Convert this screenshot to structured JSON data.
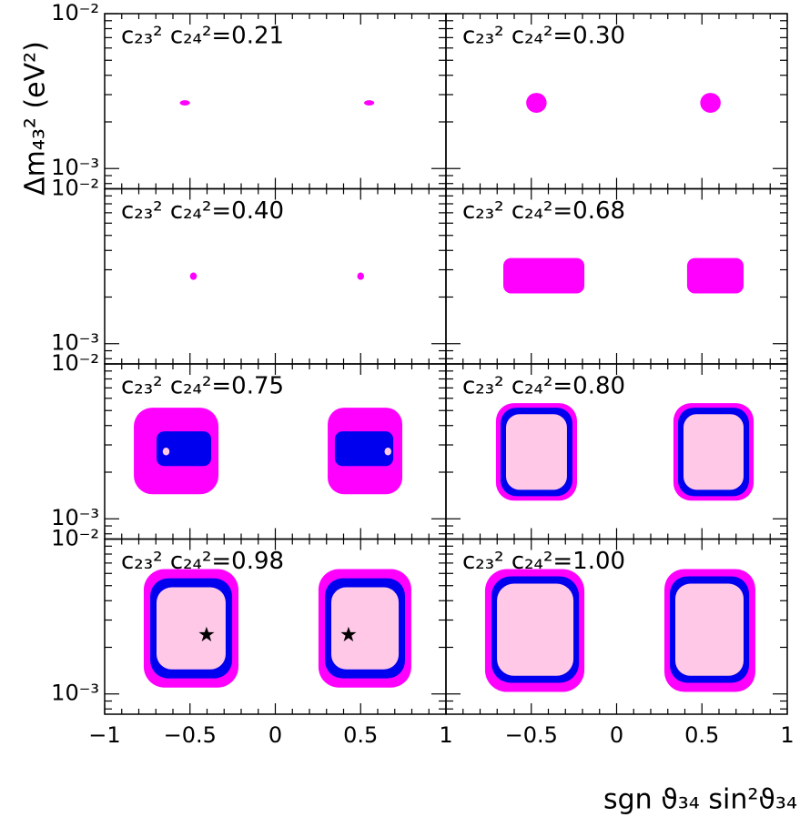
{
  "chart_data": {
    "type": "contour",
    "xlabel": "sgn ϑ₃₄ sin²ϑ₃₄",
    "ylabel": "Δm₄₃² (eV²)",
    "xlim": [
      -1,
      1
    ],
    "ylim": [
      0.00074,
      0.01
    ],
    "log_y": true,
    "xticks": [
      {
        "value": -1,
        "label": "−1"
      },
      {
        "value": -0.5,
        "label": "−0.5"
      },
      0,
      0.5,
      1
    ],
    "xticks_minor": [
      -0.9,
      -0.8,
      -0.7,
      -0.6,
      -0.4,
      -0.3,
      -0.2,
      -0.1,
      0.1,
      0.2,
      0.3,
      0.4,
      0.6,
      0.7,
      0.8,
      0.9
    ],
    "yticks": [
      {
        "value": 0.001,
        "label": "10⁻³"
      },
      {
        "value": 0.01,
        "label": "10⁻²"
      }
    ],
    "yticks_minor": [
      0.0008,
      0.0009,
      0.002,
      0.003,
      0.004,
      0.005,
      0.006,
      0.007,
      0.008,
      0.009
    ],
    "panels": [
      {
        "label": "c₂₃² c₂₄²=0.21",
        "regions": [
          {
            "color": "#ff00ff",
            "x": [
              -0.56,
              -0.5
            ],
            "y": [
              0.00255,
              0.00276
            ]
          },
          {
            "color": "#ff00ff",
            "x": [
              0.52,
              0.58
            ],
            "y": [
              0.00255,
              0.00276
            ]
          }
        ]
      },
      {
        "label": "c₂₃² c₂₄²=0.30",
        "regions": [
          {
            "color": "#ff00ff",
            "x": [
              -0.53,
              -0.41
            ],
            "y": [
              0.00229,
              0.00308
            ]
          },
          {
            "color": "#ff00ff",
            "x": [
              0.49,
              0.61
            ],
            "y": [
              0.00229,
              0.00308
            ]
          }
        ]
      },
      {
        "label": "c₂₃² c₂₄²=0.40",
        "regions": [
          {
            "color": "#ff00ff",
            "x": [
              -0.5,
              -0.46
            ],
            "y": [
              0.00258,
              0.00288
            ]
          },
          {
            "color": "#ff00ff",
            "x": [
              0.48,
              0.52
            ],
            "y": [
              0.00258,
              0.00288
            ]
          }
        ]
      },
      {
        "label": "c₂₃² c₂₄²=0.68",
        "regions": [
          {
            "color": "#ff00ff",
            "x": [
              -0.664,
              -0.189
            ],
            "y": [
              0.00211,
              0.00357
            ]
          },
          {
            "color": "#ff00ff",
            "x": [
              0.413,
              0.744
            ],
            "y": [
              0.00211,
              0.00357
            ]
          }
        ]
      },
      {
        "label": "c₂₃² c₂₄²=0.75",
        "regions": [
          {
            "color": "#ff00ff",
            "x": [
              -0.829,
              -0.333
            ],
            "y": [
              0.00144,
              0.00522
            ]
          },
          {
            "color": "#0000ee",
            "x": [
              -0.696,
              -0.376
            ],
            "y": [
              0.00219,
              0.00367
            ]
          },
          {
            "color": "#ffc8e6",
            "x": [
              -0.66,
              -0.62
            ],
            "y": [
              0.00257,
              0.00288
            ]
          },
          {
            "color": "#ff00ff",
            "x": [
              0.307,
              0.744
            ],
            "y": [
              0.00144,
              0.00522
            ]
          },
          {
            "color": "#0000ee",
            "x": [
              0.349,
              0.691
            ],
            "y": [
              0.00219,
              0.00367
            ]
          },
          {
            "color": "#ffc8e6",
            "x": [
              0.64,
              0.68
            ],
            "y": [
              0.00257,
              0.00288
            ]
          }
        ]
      },
      {
        "label": "c₂₃² c₂₄²=0.80",
        "regions": [
          {
            "color": "#ff00ff",
            "x": [
              -0.707,
              -0.232
            ],
            "y": [
              0.00131,
              0.00558
            ]
          },
          {
            "color": "#0000ee",
            "x": [
              -0.68,
              -0.259
            ],
            "y": [
              0.0014,
              0.00522
            ]
          },
          {
            "color": "#ffc8e6",
            "x": [
              -0.648,
              -0.291
            ],
            "y": [
              0.00154,
              0.00474
            ]
          },
          {
            "color": "#ff00ff",
            "x": [
              0.333,
              0.803
            ],
            "y": [
              0.00131,
              0.00558
            ]
          },
          {
            "color": "#0000ee",
            "x": [
              0.36,
              0.776
            ],
            "y": [
              0.0014,
              0.00522
            ]
          },
          {
            "color": "#ffc8e6",
            "x": [
              0.392,
              0.744
            ],
            "y": [
              0.00154,
              0.00474
            ]
          }
        ]
      },
      {
        "label": "c₂₃² c₂₄²=0.98",
        "regions": [
          {
            "color": "#ff00ff",
            "x": [
              -0.771,
              -0.216
            ],
            "y": [
              0.0011,
              0.0064
            ]
          },
          {
            "color": "#0000ee",
            "x": [
              -0.733,
              -0.253
            ],
            "y": [
              0.00126,
              0.00558
            ]
          },
          {
            "color": "#ffc8e6",
            "x": [
              -0.696,
              -0.291
            ],
            "y": [
              0.00144,
              0.00488
            ]
          },
          {
            "color": "#ff00ff",
            "x": [
              0.253,
              0.797
            ],
            "y": [
              0.0011,
              0.0064
            ]
          },
          {
            "color": "#0000ee",
            "x": [
              0.291,
              0.76
            ],
            "y": [
              0.00126,
              0.00558
            ]
          },
          {
            "color": "#ffc8e6",
            "x": [
              0.328,
              0.723
            ],
            "y": [
              0.00144,
              0.00488
            ]
          }
        ],
        "best_fit": {
          "x": [
            -0.403,
            0.429
          ],
          "y": [
            0.00241,
            0.00241
          ]
        }
      },
      {
        "label": "c₂₃² c₂₄²=1.00",
        "regions": [
          {
            "color": "#ff00ff",
            "x": [
              -0.771,
              -0.189
            ],
            "y": [
              0.00103,
              0.0064
            ]
          },
          {
            "color": "#0000ee",
            "x": [
              -0.733,
              -0.221
            ],
            "y": [
              0.00118,
              0.00574
            ]
          },
          {
            "color": "#ffc8e6",
            "x": [
              -0.701,
              -0.253
            ],
            "y": [
              0.00131,
              0.00515
            ]
          },
          {
            "color": "#ff00ff",
            "x": [
              0.28,
              0.813
            ],
            "y": [
              0.00103,
              0.0064
            ]
          },
          {
            "color": "#0000ee",
            "x": [
              0.312,
              0.776
            ],
            "y": [
              0.00118,
              0.00574
            ]
          },
          {
            "color": "#ffc8e6",
            "x": [
              0.344,
              0.744
            ],
            "y": [
              0.00131,
              0.00515
            ]
          }
        ]
      }
    ]
  }
}
